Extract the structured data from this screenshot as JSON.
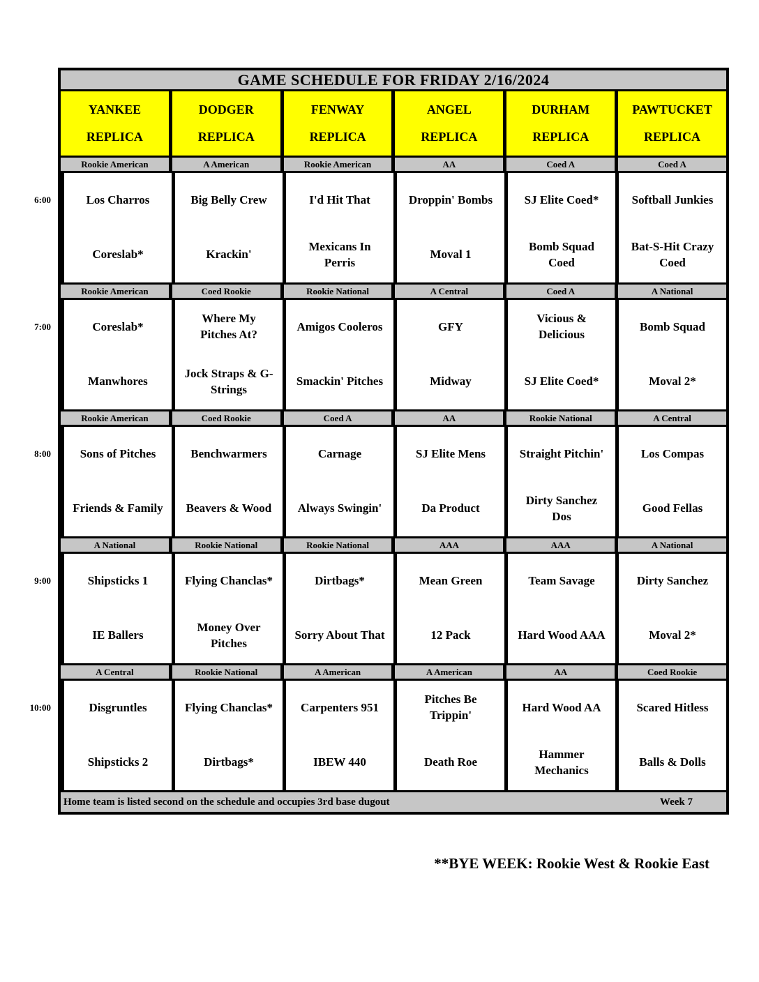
{
  "title": "GAME SCHEDULE FOR FRIDAY 2/16/2024",
  "colors": {
    "header_bg": "#ffff00",
    "band_bg": "#c6c6c6",
    "border": "#000000",
    "cell_bg": "#ffffff"
  },
  "columns": [
    {
      "name": "YANKEE",
      "suffix": "REPLICA"
    },
    {
      "name": "DODGER",
      "suffix": "REPLICA"
    },
    {
      "name": "FENWAY",
      "suffix": "REPLICA"
    },
    {
      "name": "ANGEL",
      "suffix": "REPLICA"
    },
    {
      "name": "DURHAM",
      "suffix": "REPLICA"
    },
    {
      "name": "PAWTUCKET",
      "suffix": "REPLICA"
    }
  ],
  "time_slots": [
    {
      "time": "6:00",
      "games": [
        {
          "division": "Rookie American",
          "away": "Los Charros",
          "home": "Coreslab*"
        },
        {
          "division": "A American",
          "away": "Big Belly Crew",
          "home": "Krackin'"
        },
        {
          "division": "Rookie American",
          "away": "I'd Hit That",
          "home": "Mexicans In\nPerris"
        },
        {
          "division": "AA",
          "away": "Droppin' Bombs",
          "home": "Moval 1"
        },
        {
          "division": "Coed A",
          "away": "SJ Elite Coed*",
          "home": "Bomb Squad\nCoed"
        },
        {
          "division": "Coed A",
          "away": "Softball Junkies",
          "home": "Bat-S-Hit Crazy\nCoed"
        }
      ]
    },
    {
      "time": "7:00",
      "games": [
        {
          "division": "Rookie American",
          "away": "Coreslab*",
          "home": "Manwhores"
        },
        {
          "division": "Coed Rookie",
          "away": "Where My\nPitches At?",
          "home": "Jock Straps & G-\nStrings"
        },
        {
          "division": "Rookie National",
          "away": "Amigos Cooleros",
          "home": "Smackin' Pitches"
        },
        {
          "division": "A Central",
          "away": "GFY",
          "home": "Midway"
        },
        {
          "division": "Coed A",
          "away": "Vicious &\nDelicious",
          "home": "SJ Elite Coed*"
        },
        {
          "division": "A National",
          "away": "Bomb Squad",
          "home": "Moval 2*"
        }
      ]
    },
    {
      "time": "8:00",
      "games": [
        {
          "division": "Rookie American",
          "away": "Sons of Pitches",
          "home": "Friends & Family"
        },
        {
          "division": "Coed Rookie",
          "away": "Benchwarmers",
          "home": "Beavers & Wood"
        },
        {
          "division": "Coed A",
          "away": "Carnage",
          "home": "Always Swingin'"
        },
        {
          "division": "AA",
          "away": "SJ Elite Mens",
          "home": "Da Product"
        },
        {
          "division": "Rookie National",
          "away": "Straight Pitchin'",
          "home": "Dirty Sanchez\nDos"
        },
        {
          "division": "A Central",
          "away": "Los Compas",
          "home": "Good Fellas"
        }
      ]
    },
    {
      "time": "9:00",
      "games": [
        {
          "division": "A National",
          "away": "Shipsticks 1",
          "home": "IE Ballers"
        },
        {
          "division": "Rookie National",
          "away": "Flying Chanclas*",
          "home": "Money Over\nPitches"
        },
        {
          "division": "Rookie National",
          "away": "Dirtbags*",
          "home": "Sorry About That"
        },
        {
          "division": "AAA",
          "away": "Mean Green",
          "home": "12 Pack"
        },
        {
          "division": "AAA",
          "away": "Team Savage",
          "home": "Hard Wood AAA"
        },
        {
          "division": "A National",
          "away": "Dirty Sanchez",
          "home": "Moval 2*"
        }
      ]
    },
    {
      "time": "10:00",
      "games": [
        {
          "division": "A Central",
          "away": "Disgruntles",
          "home": "Shipsticks 2"
        },
        {
          "division": "Rookie National",
          "away": "Flying Chanclas*",
          "home": "Dirtbags*"
        },
        {
          "division": "A American",
          "away": "Carpenters 951",
          "home": "IBEW 440"
        },
        {
          "division": "A American",
          "away": "Pitches Be\nTrippin'",
          "home": "Death Roe"
        },
        {
          "division": "AA",
          "away": "Hard Wood AA",
          "home": "Hammer\nMechanics"
        },
        {
          "division": "Coed Rookie",
          "away": "Scared Hitless",
          "home": "Balls & Dolls"
        }
      ]
    }
  ],
  "footer": {
    "note": "Home team is listed second on the schedule and occupies 3rd base dugout",
    "week": "Week 7"
  },
  "bye_week": "**BYE WEEK: Rookie West & Rookie East"
}
